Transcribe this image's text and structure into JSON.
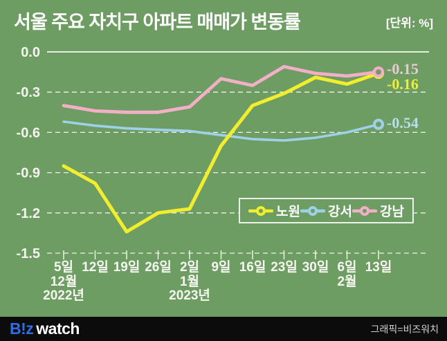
{
  "header": {
    "title": "서울 주요 자치구 아파트 매매가 변동률",
    "unit_label": "[단위: %]"
  },
  "chart_data": {
    "type": "line",
    "title": "서울 주요 자치구 아파트 매매가 변동률",
    "unit": "%",
    "categories": [
      "5일",
      "12일",
      "19일",
      "26일",
      "2일",
      "9일",
      "16일",
      "23일",
      "30일",
      "6일",
      "13일"
    ],
    "month_markers": [
      {
        "category_index": 0,
        "month": "12월",
        "year": "2022년"
      },
      {
        "category_index": 4,
        "month": "1월",
        "year": "2023년"
      },
      {
        "category_index": 9,
        "month": "2월",
        "year": ""
      }
    ],
    "ylim": [
      -1.5,
      0.0
    ],
    "yticks": [
      0.0,
      -0.3,
      -0.6,
      -0.9,
      -1.2,
      -1.5
    ],
    "ytick_labels": [
      "0.0",
      "-0.3",
      "-0.6",
      "-0.9",
      "-1.2",
      "-1.5"
    ],
    "grid": "horizontal dashed lines, solid line at 0.0",
    "legend_position": "inside bottom-right",
    "series": [
      {
        "name": "노원",
        "color": "#f3ee2d",
        "values": [
          -0.85,
          -0.98,
          -1.34,
          -1.2,
          -1.17,
          -0.7,
          -0.4,
          -0.31,
          -0.19,
          -0.24,
          -0.16
        ],
        "end_label": "-0.16"
      },
      {
        "name": "강서",
        "color": "#9ed1e8",
        "values": [
          -0.52,
          -0.55,
          -0.57,
          -0.58,
          -0.59,
          -0.62,
          -0.65,
          -0.66,
          -0.64,
          -0.6,
          -0.54
        ],
        "end_label": "-0.54"
      },
      {
        "name": "강남",
        "color": "#f2afc7",
        "values": [
          -0.4,
          -0.44,
          -0.45,
          -0.45,
          -0.41,
          -0.2,
          -0.25,
          -0.11,
          -0.16,
          -0.18,
          -0.15
        ],
        "end_label": "-0.15"
      }
    ]
  },
  "footer": {
    "logo_biz": "B!z",
    "logo_watch": "watch",
    "credit": "그래픽=비즈워치"
  },
  "colors": {
    "background": "#6e9d63",
    "grid": "#f7f9f3",
    "text": "#ffffff",
    "nowon_yellow": "#f3ee2d",
    "gangseo_blue": "#9ed1e8",
    "gangnam_pink": "#f2afc7",
    "end_label_yellow": "#f3ee2d",
    "end_label_blue": "#bcdcec",
    "end_label_pink": "#edc9d5",
    "footer_bg": "#0c0c0c",
    "logo_blue": "#2f6fe4",
    "credit_gray": "#d2d2d2"
  }
}
